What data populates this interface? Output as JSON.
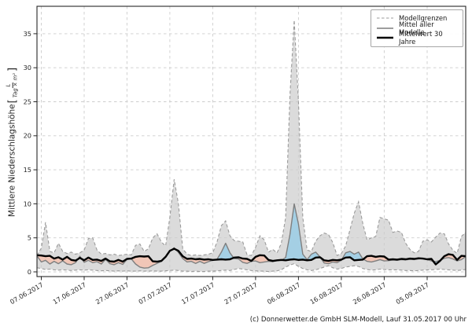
{
  "chart_data": {
    "type": "line",
    "title": "",
    "ylabel_prefix": "Mittlere Niederschlagshöhe",
    "ylabel_bracket_open": "[",
    "ylabel_fraction_numerator": "L",
    "ylabel_fraction_denominator": "Tag × m²",
    "ylabel_bracket_close": "]",
    "xlabel": "",
    "grid": true,
    "legend_position": "top-right",
    "ylim": [
      -0.7,
      39.0
    ],
    "y_ticks": [
      0,
      5,
      10,
      15,
      20,
      25,
      30,
      35
    ],
    "x_tick_labels": [
      "07.06.2017",
      "17.06.2017",
      "27.06.2017",
      "07.07.2017",
      "17.07.2017",
      "27.07.2017",
      "06.08.2017",
      "16.08.2017",
      "26.08.2017",
      "05.09.2017"
    ],
    "x_tick_days": [
      1,
      11,
      21,
      31,
      41,
      51,
      61,
      71,
      81,
      91
    ],
    "x_total_days": 100,
    "legend": {
      "items": [
        {
          "label": "Modellgrenzen",
          "style": "dashed-gray"
        },
        {
          "label": "Mittel aller Modelle",
          "style": "solid-gray"
        },
        {
          "label": "Mittelwert 30 Jahre",
          "style": "thick-black"
        }
      ]
    },
    "colors": {
      "band_fill": "#dbdbdb",
      "bound_line": "#9b9b9b",
      "mean_line": "#7f7f7f",
      "mean30_line": "#000000",
      "above_fill": "#a4cfe4",
      "below_fill": "#f1c6b7",
      "grid": "#cdcdcd",
      "spine": "#262626"
    },
    "series": [
      {
        "name": "Obere Modellgrenze",
        "values": [
          2.4,
          3.5,
          7.3,
          3.0,
          2.8,
          4.2,
          3.0,
          2.7,
          2.9,
          2.6,
          2.8,
          3.2,
          4.9,
          5.0,
          3.2,
          2.6,
          2.7,
          2.5,
          2.6,
          2.4,
          2.5,
          2.6,
          2.5,
          3.9,
          4.1,
          3.0,
          3.4,
          5.0,
          5.6,
          4.4,
          3.8,
          8.0,
          13.6,
          10.0,
          3.4,
          2.6,
          2.4,
          2.5,
          2.4,
          2.5,
          2.6,
          2.8,
          4.4,
          6.8,
          7.5,
          5.3,
          4.6,
          4.5,
          4.4,
          2.5,
          2.4,
          3.6,
          5.3,
          4.7,
          2.9,
          3.3,
          2.8,
          4.2,
          8.0,
          26.0,
          37.0,
          25.0,
          8.0,
          3.2,
          3.0,
          4.5,
          5.3,
          5.7,
          5.5,
          4.3,
          2.4,
          2.7,
          3.8,
          6.2,
          8.6,
          10.3,
          7.1,
          4.7,
          5.0,
          5.2,
          8.0,
          7.8,
          7.6,
          5.8,
          6.0,
          5.8,
          4.2,
          3.3,
          2.8,
          3.0,
          4.5,
          4.7,
          4.4,
          5.1,
          5.7,
          5.6,
          4.1,
          3.2,
          2.7,
          5.2,
          5.8
        ]
      },
      {
        "name": "Untere Modellgrenze",
        "values": [
          0.6,
          0.5,
          0.35,
          0.4,
          0.3,
          0.25,
          0.3,
          0.25,
          0.2,
          0.25,
          0.3,
          0.25,
          0.3,
          0.25,
          0.2,
          0.15,
          0.2,
          0.15,
          0.1,
          0.15,
          0.1,
          0.15,
          0.1,
          0.1,
          0.15,
          0.1,
          0.1,
          0.15,
          0.1,
          0.1,
          0.15,
          0.2,
          0.25,
          0.2,
          0.1,
          0.1,
          0.05,
          0.1,
          0.05,
          0.05,
          0.1,
          0.1,
          0.15,
          0.2,
          0.25,
          0.2,
          0.35,
          0.5,
          0.4,
          0.3,
          0.2,
          0.15,
          0.1,
          0.1,
          0.05,
          0.1,
          0.15,
          0.3,
          0.7,
          1.0,
          1.2,
          0.8,
          0.5,
          0.3,
          0.2,
          0.3,
          0.5,
          0.7,
          0.9,
          0.6,
          0.4,
          0.5,
          0.7,
          0.8,
          0.9,
          0.8,
          0.5,
          0.35,
          0.25,
          0.3,
          0.4,
          0.35,
          0.3,
          0.3,
          0.3,
          0.25,
          0.2,
          0.2,
          0.15,
          0.2,
          0.25,
          0.3,
          0.3,
          0.35,
          0.4,
          0.35,
          0.3,
          0.25,
          0.2,
          0.25,
          0.35
        ]
      },
      {
        "name": "Mittel aller Modelle",
        "values": [
          2.35,
          1.45,
          1.7,
          1.15,
          1.55,
          1.2,
          1.6,
          1.15,
          1.05,
          1.35,
          2.3,
          1.4,
          1.7,
          1.35,
          1.5,
          1.15,
          1.85,
          1.2,
          1.05,
          1.35,
          1.1,
          1.85,
          1.9,
          1.15,
          0.7,
          0.55,
          0.6,
          0.95,
          1.25,
          1.55,
          2.15,
          3.05,
          3.55,
          2.85,
          1.95,
          1.45,
          1.55,
          1.25,
          1.55,
          1.25,
          1.5,
          1.7,
          1.85,
          2.9,
          4.2,
          2.8,
          1.95,
          1.9,
          1.4,
          1.25,
          1.55,
          1.6,
          1.35,
          1.45,
          1.55,
          1.5,
          1.65,
          1.7,
          2.1,
          5.5,
          10.0,
          7.0,
          2.6,
          1.8,
          2.6,
          2.9,
          2.2,
          1.3,
          1.2,
          1.45,
          1.35,
          1.7,
          2.8,
          3.0,
          2.6,
          2.9,
          1.9,
          1.55,
          1.45,
          1.6,
          1.8,
          1.6,
          1.65,
          1.75,
          1.7,
          1.8,
          1.75,
          1.85,
          1.8,
          1.9,
          1.95,
          1.8,
          1.6,
          1.5,
          1.7,
          2.0,
          2.1,
          1.9,
          1.6,
          1.8,
          2.25
        ]
      },
      {
        "name": "Mittelwert 30 Jahre",
        "values": [
          2.45,
          2.4,
          2.3,
          2.35,
          1.95,
          2.15,
          1.8,
          2.2,
          1.75,
          1.65,
          2.05,
          1.7,
          2.1,
          1.75,
          1.8,
          1.6,
          1.95,
          1.55,
          1.5,
          1.75,
          1.5,
          1.9,
          1.95,
          2.2,
          2.3,
          2.25,
          2.3,
          1.55,
          1.5,
          1.6,
          2.2,
          3.1,
          3.4,
          3.1,
          2.3,
          1.9,
          1.95,
          1.85,
          1.9,
          1.8,
          1.85,
          1.75,
          1.8,
          1.85,
          1.8,
          1.85,
          2.1,
          2.15,
          1.95,
          1.9,
          1.6,
          2.2,
          2.45,
          2.4,
          1.75,
          1.6,
          1.7,
          1.75,
          1.7,
          1.8,
          1.85,
          1.75,
          1.8,
          1.7,
          1.75,
          2.1,
          2.15,
          1.7,
          1.6,
          1.75,
          1.7,
          1.8,
          2.1,
          2.15,
          1.7,
          1.75,
          1.8,
          2.3,
          2.35,
          2.2,
          2.3,
          2.25,
          1.8,
          1.85,
          1.8,
          1.9,
          1.85,
          1.95,
          1.9,
          2.0,
          1.95,
          1.85,
          1.9,
          1.1,
          1.6,
          2.3,
          2.6,
          2.5,
          1.75,
          2.35,
          2.3
        ]
      }
    ]
  },
  "footer": {
    "credit": "(c) Donnerwetter.de GmbH SLM-Modell, Lauf 31.05.2017 00 Uhr"
  }
}
